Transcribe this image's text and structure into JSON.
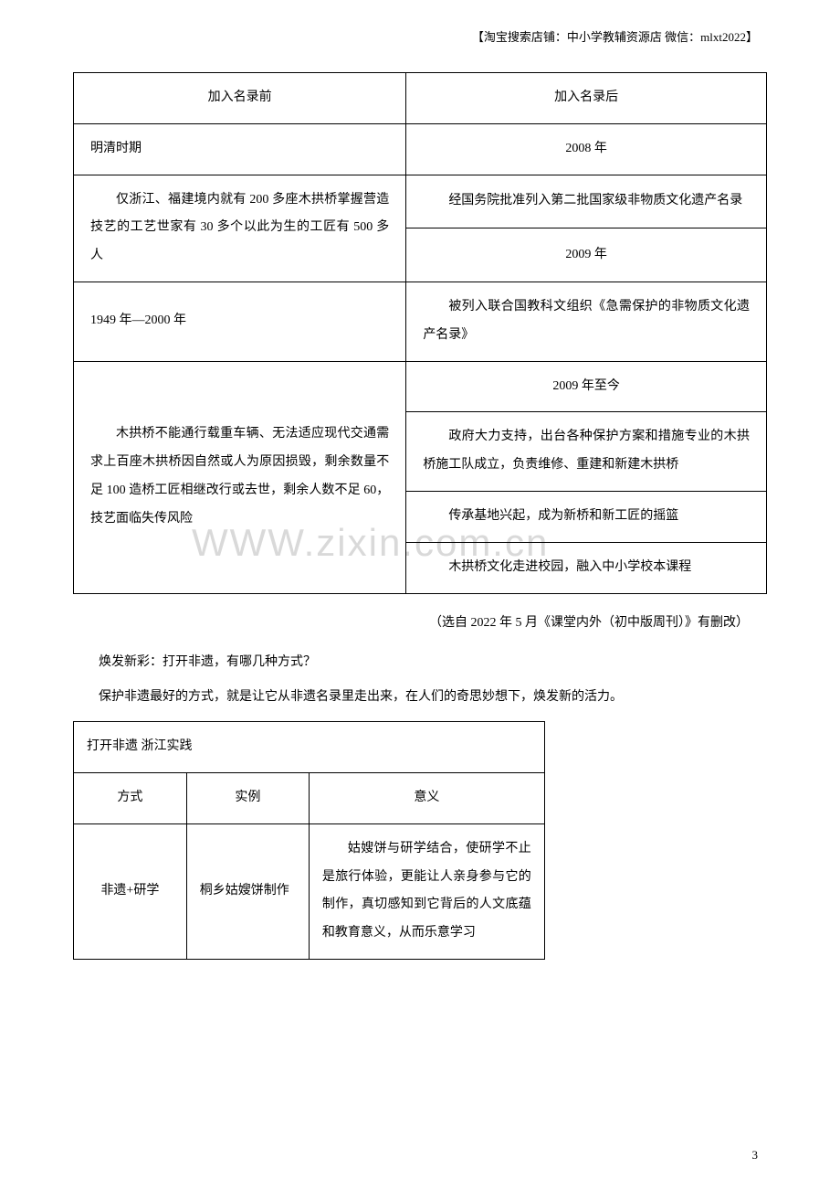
{
  "header": "【淘宝搜索店铺：中小学教辅资源店  微信：mlxt2022】",
  "watermark": "WWW.zixin.com.cn",
  "table1": {
    "header_left": "加入名录前",
    "header_right": "加入名录后",
    "row1_left": "明清时期",
    "row1_right": "2008 年",
    "row2_left": "仅浙江、福建境内就有 200 多座木拱桥掌握营造技艺的工艺世家有 30 多个以此为生的工匠有 500 多人",
    "row2_right1": "经国务院批准列入第二批国家级非物质文化遗产名录",
    "row2_right2": "2009 年",
    "row3_left": "1949 年—2000 年",
    "row3_right": "被列入联合国教科文组织《急需保护的非物质文化遗产名录》",
    "row4_left": "木拱桥不能通行载重车辆、无法适应现代交通需求上百座木拱桥因自然或人为原因损毁，剩余数量不足 100 造桥工匠相继改行或去世，剩余人数不足 60，技艺面临失传风险",
    "row4_right1": "2009 年至今",
    "row4_right2": "政府大力支持，出台各种保护方案和措施专业的木拱桥施工队成立，负责维修、重建和新建木拱桥",
    "row4_right3": "传承基地兴起，成为新桥和新工匠的摇篮",
    "row4_right4": "木拱桥文化走进校园，融入中小学校本课程"
  },
  "source": "（选自 2022 年 5 月《课堂内外（初中版周刊）》有删改）",
  "para1": "焕发新彩：打开非遗，有哪几种方式？",
  "para2": "保护非遗最好的方式，就是让它从非遗名录里走出来，在人们的奇思妙想下，焕发新的活力。",
  "table2": {
    "title": "打开非遗   浙江实践",
    "h1": "方式",
    "h2": "实例",
    "h3": "意义",
    "r1c1": "非遗+研学",
    "r1c2": "桐乡姑嫂饼制作",
    "r1c3": "姑嫂饼与研学结合，使研学不止是旅行体验，更能让人亲身参与它的制作，真切感知到它背后的人文底蕴和教育意义，从而乐意学习"
  },
  "page_num": "3"
}
